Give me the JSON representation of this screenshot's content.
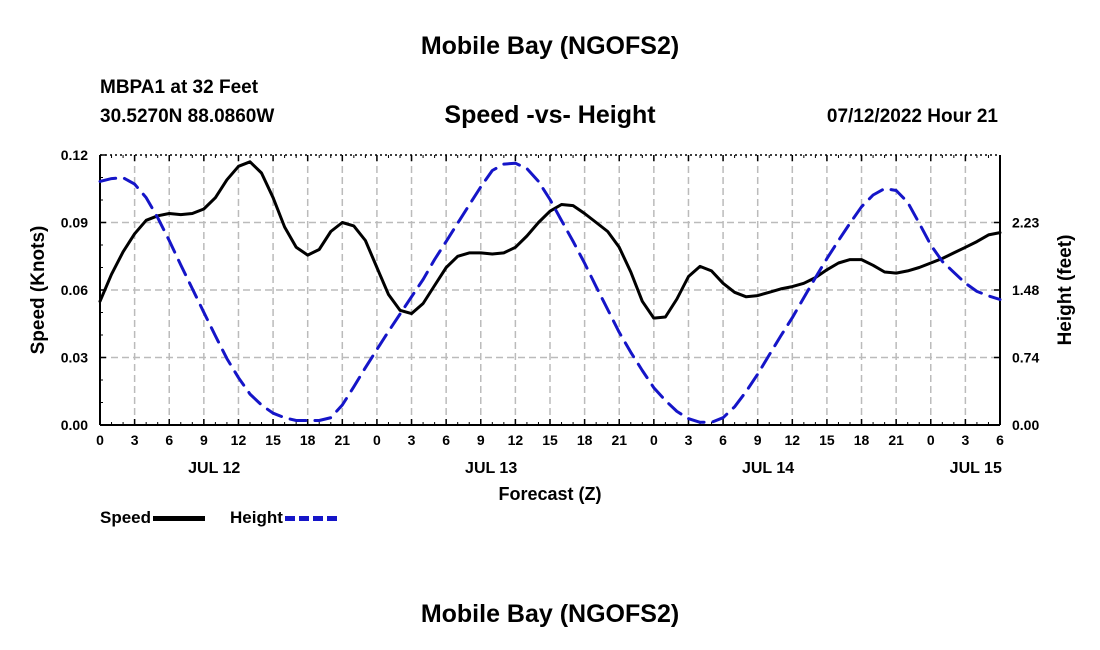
{
  "title": "Mobile Bay (NGOFS2)",
  "footer_title": "Mobile Bay (NGOFS2)",
  "station": "MBPA1 at 32 Feet",
  "coords": "30.5270N  88.0860W",
  "subtitle": "Speed -vs- Height",
  "timestamp": "07/12/2022 Hour 21",
  "colors": {
    "speed": "#000000",
    "height": "#1515c8",
    "grid": "#bbbbbb"
  },
  "legend": {
    "speed": "Speed",
    "height": "Height"
  },
  "chart_data": {
    "type": "line",
    "title": "Speed -vs- Height",
    "xlabel": "Forecast (Z)",
    "ylabel": "Speed (Knots)",
    "y2label": "Height (feet)",
    "grid": true,
    "x_unit": "hours from 00Z JUL 12",
    "xlim": [
      0,
      78
    ],
    "ylim": [
      0,
      0.12
    ],
    "y2lim": [
      0,
      2.97
    ],
    "x_ticks": [
      {
        "x": 0,
        "label": "0"
      },
      {
        "x": 3,
        "label": "3"
      },
      {
        "x": 6,
        "label": "6"
      },
      {
        "x": 9,
        "label": "9"
      },
      {
        "x": 12,
        "label": "12"
      },
      {
        "x": 15,
        "label": "15"
      },
      {
        "x": 18,
        "label": "18"
      },
      {
        "x": 21,
        "label": "21"
      },
      {
        "x": 24,
        "label": "0"
      },
      {
        "x": 27,
        "label": "3"
      },
      {
        "x": 30,
        "label": "6"
      },
      {
        "x": 33,
        "label": "9"
      },
      {
        "x": 36,
        "label": "12"
      },
      {
        "x": 39,
        "label": "15"
      },
      {
        "x": 42,
        "label": "18"
      },
      {
        "x": 45,
        "label": "21"
      },
      {
        "x": 48,
        "label": "0"
      },
      {
        "x": 51,
        "label": "3"
      },
      {
        "x": 54,
        "label": "6"
      },
      {
        "x": 57,
        "label": "9"
      },
      {
        "x": 60,
        "label": "12"
      },
      {
        "x": 63,
        "label": "15"
      },
      {
        "x": 66,
        "label": "18"
      },
      {
        "x": 69,
        "label": "21"
      },
      {
        "x": 72,
        "label": "0"
      },
      {
        "x": 75,
        "label": "3"
      },
      {
        "x": 78,
        "label": "6"
      }
    ],
    "date_labels": [
      {
        "x": 9.9,
        "label": "JUL 12"
      },
      {
        "x": 33.9,
        "label": "JUL 13"
      },
      {
        "x": 57.9,
        "label": "JUL 14"
      },
      {
        "x": 75.9,
        "label": "JUL 15"
      }
    ],
    "y_ticks": [
      "0.00",
      "0.03",
      "0.06",
      "0.09",
      "0.12"
    ],
    "y2_ticks": [
      "0.00",
      "0.74",
      "1.48",
      "2.23"
    ],
    "series": [
      {
        "name": "Speed",
        "axis": "left",
        "points": [
          [
            0,
            0.055
          ],
          [
            1,
            0.067
          ],
          [
            2,
            0.077
          ],
          [
            3,
            0.085
          ],
          [
            4,
            0.091
          ],
          [
            5,
            0.093
          ],
          [
            6,
            0.094
          ],
          [
            7,
            0.0935
          ],
          [
            8,
            0.094
          ],
          [
            9,
            0.096
          ],
          [
            10,
            0.101
          ],
          [
            11,
            0.109
          ],
          [
            12,
            0.115
          ],
          [
            13,
            0.117
          ],
          [
            14,
            0.112
          ],
          [
            15,
            0.101
          ],
          [
            16,
            0.088
          ],
          [
            17,
            0.079
          ],
          [
            18,
            0.0755
          ],
          [
            19,
            0.078
          ],
          [
            20,
            0.086
          ],
          [
            21,
            0.09
          ],
          [
            22,
            0.0885
          ],
          [
            23,
            0.082
          ],
          [
            24,
            0.07
          ],
          [
            25,
            0.058
          ],
          [
            26,
            0.051
          ],
          [
            27,
            0.0495
          ],
          [
            28,
            0.054
          ],
          [
            29,
            0.062
          ],
          [
            30,
            0.07
          ],
          [
            31,
            0.075
          ],
          [
            32,
            0.0765
          ],
          [
            33,
            0.0765
          ],
          [
            34,
            0.076
          ],
          [
            35,
            0.0765
          ],
          [
            36,
            0.079
          ],
          [
            37,
            0.084
          ],
          [
            38,
            0.09
          ],
          [
            39,
            0.095
          ],
          [
            40,
            0.098
          ],
          [
            41,
            0.0975
          ],
          [
            42,
            0.094
          ],
          [
            43,
            0.09
          ],
          [
            44,
            0.086
          ],
          [
            45,
            0.079
          ],
          [
            46,
            0.068
          ],
          [
            47,
            0.055
          ],
          [
            48,
            0.0475
          ],
          [
            49,
            0.048
          ],
          [
            50,
            0.056
          ],
          [
            51,
            0.066
          ],
          [
            52,
            0.0705
          ],
          [
            53,
            0.0685
          ],
          [
            54,
            0.063
          ],
          [
            55,
            0.059
          ],
          [
            56,
            0.057
          ],
          [
            57,
            0.0575
          ],
          [
            58,
            0.059
          ],
          [
            59,
            0.0605
          ],
          [
            60,
            0.0615
          ],
          [
            61,
            0.063
          ],
          [
            62,
            0.0655
          ],
          [
            63,
            0.069
          ],
          [
            64,
            0.072
          ],
          [
            65,
            0.0735
          ],
          [
            66,
            0.0735
          ],
          [
            67,
            0.071
          ],
          [
            68,
            0.068
          ],
          [
            69,
            0.0675
          ],
          [
            70,
            0.0685
          ],
          [
            71,
            0.07
          ],
          [
            72,
            0.072
          ],
          [
            73,
            0.074
          ],
          [
            74,
            0.0765
          ],
          [
            75,
            0.079
          ],
          [
            76,
            0.0815
          ],
          [
            77,
            0.0845
          ],
          [
            78,
            0.0855
          ]
        ]
      },
      {
        "name": "Height",
        "axis": "right",
        "points": [
          [
            0,
            2.68
          ],
          [
            1,
            2.71
          ],
          [
            2,
            2.72
          ],
          [
            3,
            2.65
          ],
          [
            4,
            2.5
          ],
          [
            5,
            2.28
          ],
          [
            6,
            2.03
          ],
          [
            7,
            1.76
          ],
          [
            8,
            1.5
          ],
          [
            9,
            1.24
          ],
          [
            10,
            0.98
          ],
          [
            11,
            0.73
          ],
          [
            12,
            0.52
          ],
          [
            13,
            0.34
          ],
          [
            14,
            0.22
          ],
          [
            15,
            0.13
          ],
          [
            16,
            0.08
          ],
          [
            17,
            0.05
          ],
          [
            18,
            0.05
          ],
          [
            19,
            0.05
          ],
          [
            20,
            0.08
          ],
          [
            21,
            0.22
          ],
          [
            22,
            0.42
          ],
          [
            23,
            0.63
          ],
          [
            24,
            0.83
          ],
          [
            25,
            1.03
          ],
          [
            26,
            1.22
          ],
          [
            27,
            1.41
          ],
          [
            28,
            1.6
          ],
          [
            29,
            1.82
          ],
          [
            30,
            2.02
          ],
          [
            31,
            2.22
          ],
          [
            32,
            2.42
          ],
          [
            33,
            2.62
          ],
          [
            34,
            2.8
          ],
          [
            35,
            2.87
          ],
          [
            36,
            2.88
          ],
          [
            37,
            2.82
          ],
          [
            38,
            2.68
          ],
          [
            39,
            2.48
          ],
          [
            40,
            2.25
          ],
          [
            41,
            2.02
          ],
          [
            42,
            1.78
          ],
          [
            43,
            1.52
          ],
          [
            44,
            1.27
          ],
          [
            45,
            1.02
          ],
          [
            46,
            0.8
          ],
          [
            47,
            0.6
          ],
          [
            48,
            0.41
          ],
          [
            49,
            0.27
          ],
          [
            50,
            0.15
          ],
          [
            51,
            0.07
          ],
          [
            52,
            0.03
          ],
          [
            53,
            0.03
          ],
          [
            54,
            0.08
          ],
          [
            55,
            0.2
          ],
          [
            56,
            0.37
          ],
          [
            57,
            0.56
          ],
          [
            58,
            0.77
          ],
          [
            59,
            0.98
          ],
          [
            60,
            1.18
          ],
          [
            61,
            1.4
          ],
          [
            62,
            1.62
          ],
          [
            63,
            1.83
          ],
          [
            64,
            2.03
          ],
          [
            65,
            2.22
          ],
          [
            66,
            2.4
          ],
          [
            67,
            2.53
          ],
          [
            68,
            2.6
          ],
          [
            69,
            2.58
          ],
          [
            70,
            2.45
          ],
          [
            71,
            2.22
          ],
          [
            72,
            1.98
          ],
          [
            73,
            1.8
          ],
          [
            74,
            1.68
          ],
          [
            75,
            1.56
          ],
          [
            76,
            1.47
          ],
          [
            77,
            1.42
          ],
          [
            78,
            1.38
          ]
        ]
      }
    ]
  }
}
